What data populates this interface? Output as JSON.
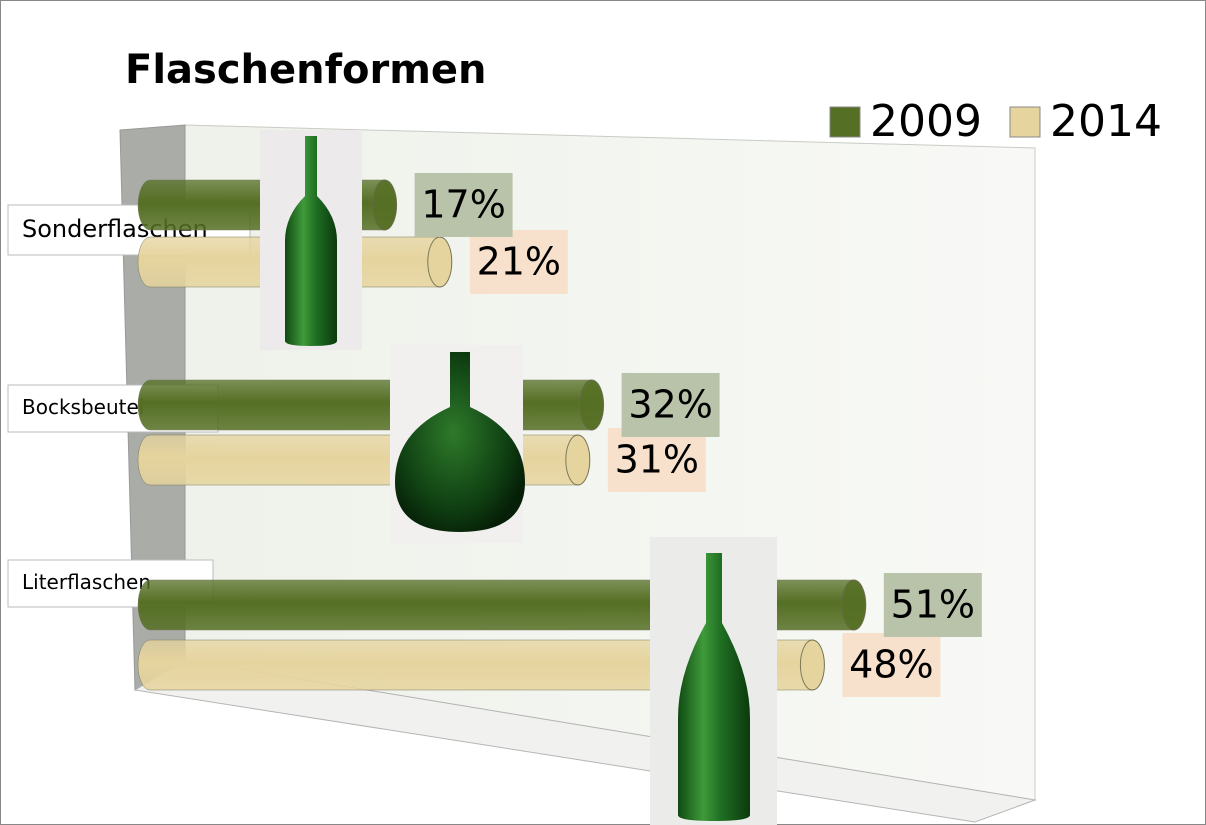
{
  "chart_data": {
    "type": "bar3d",
    "orientation": "horizontal",
    "title": "Flaschenformen",
    "categories": [
      "Sonderflaschen",
      "Bocksbeutel",
      "Literflaschen"
    ],
    "series": [
      {
        "name": "2009",
        "color": "#556f24",
        "label_background": "#b9c3aa",
        "values": [
          17,
          32,
          51
        ],
        "value_labels": [
          "17%",
          "32%",
          "51%"
        ]
      },
      {
        "name": "2014",
        "color": "#e6d49e",
        "label_background": "#f7e1cc",
        "values": [
          21,
          31,
          48
        ],
        "value_labels": [
          "21%",
          "31%",
          "48%"
        ]
      }
    ],
    "xlim": [
      0,
      60
    ],
    "legend": "top-right"
  }
}
